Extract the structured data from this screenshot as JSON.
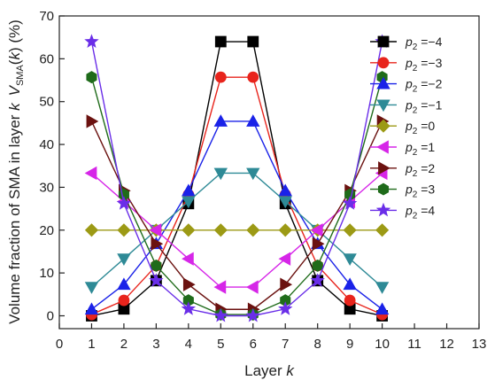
{
  "chart_data": {
    "type": "line",
    "xlabel": "Layer k",
    "ylabel": "Volume fraction of SMA in layer k  V_SMA(k) (%)",
    "ylabel_parts": {
      "prefix": "Volume fraction of SMA in layer ",
      "k1": "k",
      "v": "V",
      "sub": "SMA",
      "open": "(",
      "k2": "k",
      "close": ") (%)"
    },
    "xlabel_parts": {
      "text": "Layer ",
      "k": "k"
    },
    "xlim": [
      0,
      13
    ],
    "ylim": [
      -3,
      70
    ],
    "x_ticks": [
      0,
      1,
      2,
      3,
      4,
      5,
      6,
      7,
      8,
      9,
      10,
      11,
      12,
      13
    ],
    "y_ticks": [
      0,
      10,
      20,
      30,
      40,
      50,
      60,
      70
    ],
    "legend_position": "right",
    "grid": false,
    "x": [
      1,
      2,
      3,
      4,
      5,
      6,
      7,
      8,
      9,
      10
    ],
    "series": [
      {
        "name": "p2 = -4",
        "p_label": "p",
        "sub": "2",
        "eq": " =−4",
        "color": "#000000",
        "marker": "square",
        "values": [
          0,
          1.6,
          8.2,
          26.2,
          64,
          64,
          26.2,
          8.2,
          1.6,
          0
        ]
      },
      {
        "name": "p2 = -3",
        "p_label": "p",
        "sub": "2",
        "eq": " =−3",
        "color": "#e8241c",
        "marker": "circle",
        "values": [
          0.3,
          3.6,
          11.7,
          28.3,
          55.7,
          55.7,
          28.3,
          11.7,
          3.6,
          0.3
        ]
      },
      {
        "name": "p2 = -2",
        "p_label": "p",
        "sub": "2",
        "eq": " =−2",
        "color": "#1a22e8",
        "marker": "triangle-up",
        "values": [
          1.5,
          7.3,
          16.8,
          29.2,
          45.4,
          45.4,
          29.2,
          16.8,
          7.3,
          1.5
        ]
      },
      {
        "name": "p2 = -1",
        "p_label": "p",
        "sub": "2",
        "eq": " =−1",
        "color": "#2e8a96",
        "marker": "triangle-down",
        "values": [
          6.7,
          13.3,
          20,
          26.7,
          33.3,
          33.3,
          26.7,
          20,
          13.3,
          6.7
        ]
      },
      {
        "name": "p2 = 0",
        "p_label": "p",
        "sub": "2",
        "eq": " =0",
        "color": "#9c9a15",
        "marker": "diamond",
        "values": [
          20,
          20,
          20,
          20,
          20,
          20,
          20,
          20,
          20,
          20
        ]
      },
      {
        "name": "p2 = 1",
        "p_label": "p",
        "sub": "2",
        "eq": " =1",
        "color": "#d626e8",
        "marker": "triangle-left",
        "values": [
          33.3,
          26.7,
          20,
          13.3,
          6.7,
          6.7,
          13.3,
          20,
          26.7,
          33.3
        ]
      },
      {
        "name": "p2 = 2",
        "p_label": "p",
        "sub": "2",
        "eq": " =2",
        "color": "#6b1210",
        "marker": "triangle-right",
        "values": [
          45.4,
          29.2,
          16.8,
          7.3,
          1.5,
          1.5,
          7.3,
          16.8,
          29.2,
          45.4
        ]
      },
      {
        "name": "p2 = 3",
        "p_label": "p",
        "sub": "2",
        "eq": " =3",
        "color": "#1f6b1a",
        "marker": "hexagon",
        "values": [
          55.7,
          28.3,
          11.7,
          3.6,
          0.3,
          0.3,
          3.6,
          11.7,
          28.3,
          55.7
        ]
      },
      {
        "name": "p2 = 4",
        "p_label": "p",
        "sub": "2",
        "eq": " =4",
        "color": "#6a2ee8",
        "marker": "star",
        "values": [
          64,
          26.2,
          8.2,
          1.6,
          0,
          0,
          1.6,
          8.2,
          26.2,
          64
        ]
      }
    ]
  }
}
